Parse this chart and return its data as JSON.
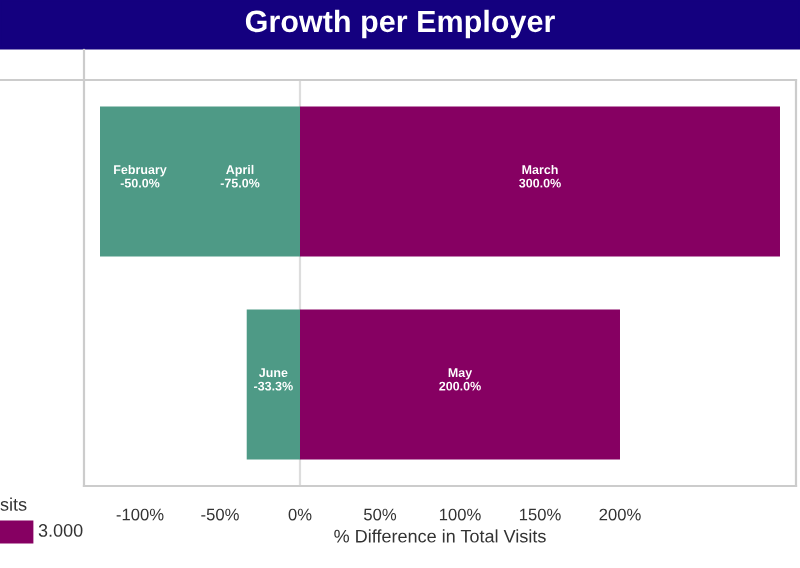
{
  "chart_data": {
    "type": "bar",
    "title": "Growth per Employer",
    "orientation": "horizontal",
    "stacked": true,
    "categories": [
      null,
      null
    ],
    "series": [
      {
        "name": "April",
        "color": "#4e9a86",
        "values": [
          -75.0,
          null
        ],
        "value_labels": [
          "-75.0%",
          null
        ]
      },
      {
        "name": "February",
        "color": "#4e9a86",
        "values": [
          -50.0,
          null
        ],
        "value_labels": [
          "-50.0%",
          null
        ]
      },
      {
        "name": "March",
        "color": "#860062",
        "values": [
          300.0,
          null
        ],
        "value_labels": [
          "300.0%",
          null
        ]
      },
      {
        "name": "June",
        "color": "#4e9a86",
        "values": [
          null,
          -33.3
        ],
        "value_labels": [
          null,
          "-33.3%"
        ]
      },
      {
        "name": "May",
        "color": "#860062",
        "values": [
          null,
          200.0
        ],
        "value_labels": [
          null,
          "200.0%"
        ]
      }
    ],
    "xlim": [
      -135,
      310
    ],
    "xticks": [
      {
        "value": -100,
        "label": "-100%"
      },
      {
        "value": -50,
        "label": "-50%"
      },
      {
        "value": 0,
        "label": "0%"
      },
      {
        "value": 50,
        "label": "50%"
      },
      {
        "value": 100,
        "label": "100%"
      },
      {
        "value": 150,
        "label": "150%"
      },
      {
        "value": 200,
        "label": "200%"
      }
    ],
    "xlabel": "% Difference in Total Visits",
    "ref_lines": [
      {
        "axis": "x",
        "value": 0,
        "color": "#dddddd"
      }
    ],
    "legend_title": "sits",
    "annotations": [
      "3.000"
    ],
    "grid": false
  }
}
